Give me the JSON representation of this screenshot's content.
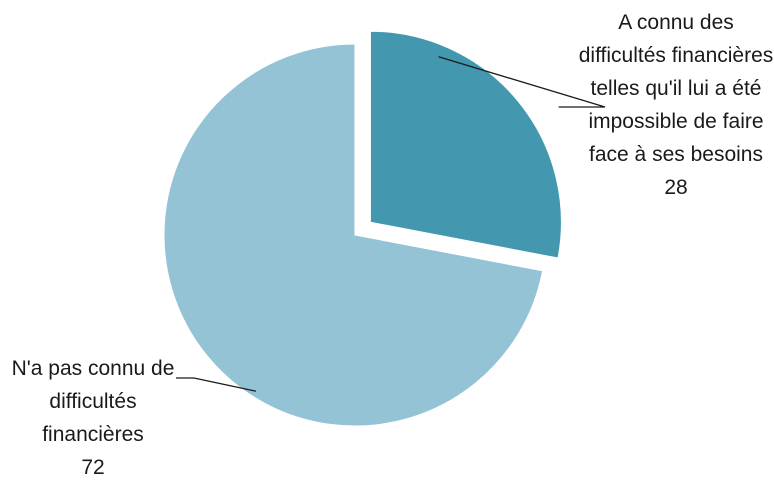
{
  "chart_data": {
    "type": "pie",
    "slices": [
      {
        "label": "A connu des difficultés financières telles qu'il lui a été impossible de faire face à ses besoins",
        "value": 28,
        "value_label": "28",
        "color": "#4398b0",
        "exploded": true
      },
      {
        "label": "N'a pas connu de difficultés financières",
        "value": 72,
        "value_label": "72",
        "color": "#95c3d6",
        "exploded": false
      }
    ],
    "start_angle": "12 o'clock",
    "direction": "clockwise",
    "legend": "none",
    "data_labels": "outside with leader lines"
  }
}
